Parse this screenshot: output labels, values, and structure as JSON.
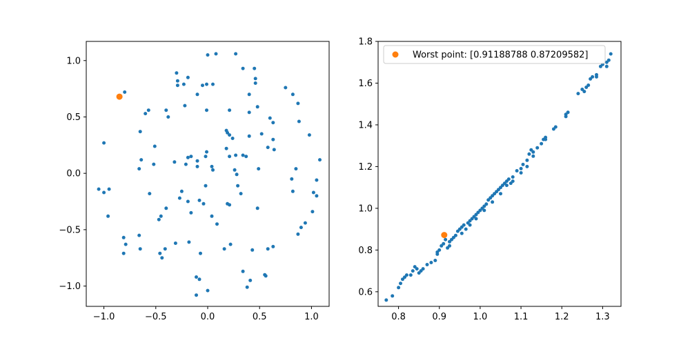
{
  "chart_data": [
    {
      "type": "scatter",
      "title": "",
      "xlabel": "",
      "ylabel": "",
      "xlim": [
        -1.17,
        1.17
      ],
      "ylim": [
        -1.18,
        1.17
      ],
      "xticks": [
        -1.0,
        -0.5,
        0.0,
        0.5,
        1.0
      ],
      "xtick_labels": [
        "−1.0",
        "−0.5",
        "0.0",
        "0.5",
        "1.0"
      ],
      "yticks": [
        -1.0,
        -0.5,
        0.0,
        0.5,
        1.0
      ],
      "ytick_labels": [
        "−1.0",
        "−0.5",
        "0.0",
        "0.5",
        "1.0"
      ],
      "grid": false,
      "series": [
        {
          "color": "#1f77b4",
          "marker_size": "small",
          "points": [
            [
              -0.3,
              0.89
            ],
            [
              -0.29,
              0.82
            ],
            [
              -0.29,
              0.78
            ],
            [
              -0.23,
              0.79
            ],
            [
              -0.19,
              0.85
            ],
            [
              -0.1,
              0.7
            ],
            [
              -0.05,
              0.78
            ],
            [
              -0.01,
              0.79
            ],
            [
              0.05,
              0.79
            ],
            [
              0.0,
              1.05
            ],
            [
              0.08,
              1.06
            ],
            [
              0.27,
              1.06
            ],
            [
              0.34,
              0.93
            ],
            [
              0.45,
              0.93
            ],
            [
              0.46,
              0.84
            ],
            [
              0.46,
              0.8
            ],
            [
              0.4,
              0.7
            ],
            [
              0.75,
              0.76
            ],
            [
              0.82,
              0.7
            ],
            [
              0.87,
              0.62
            ],
            [
              -0.8,
              0.72
            ],
            [
              -0.6,
              0.53
            ],
            [
              -0.57,
              0.56
            ],
            [
              -0.4,
              0.56
            ],
            [
              -0.38,
              0.5
            ],
            [
              -0.22,
              0.6
            ],
            [
              -0.01,
              0.56
            ],
            [
              0.21,
              0.56
            ],
            [
              0.4,
              0.54
            ],
            [
              0.48,
              0.59
            ],
            [
              0.6,
              0.49
            ],
            [
              0.63,
              0.45
            ],
            [
              0.88,
              0.46
            ],
            [
              -1.0,
              0.27
            ],
            [
              -0.65,
              0.37
            ],
            [
              -0.51,
              0.24
            ],
            [
              -0.19,
              0.14
            ],
            [
              -0.16,
              0.15
            ],
            [
              -0.1,
              0.11
            ],
            [
              -0.02,
              0.15
            ],
            [
              -0.01,
              0.19
            ],
            [
              0.18,
              0.38
            ],
            [
              0.19,
              0.36
            ],
            [
              0.21,
              0.34
            ],
            [
              0.24,
              0.31
            ],
            [
              0.27,
              0.16
            ],
            [
              0.34,
              0.16
            ],
            [
              0.4,
              0.33
            ],
            [
              0.52,
              0.35
            ],
            [
              0.58,
              0.23
            ],
            [
              0.63,
              0.3
            ],
            [
              0.64,
              0.21
            ],
            [
              0.98,
              0.34
            ],
            [
              -0.66,
              0.04
            ],
            [
              -0.64,
              0.12
            ],
            [
              -0.52,
              0.08
            ],
            [
              -0.32,
              0.1
            ],
            [
              -0.21,
              0.08
            ],
            [
              -0.1,
              0.06
            ],
            [
              0.04,
              0.06
            ],
            [
              0.05,
              0.03
            ],
            [
              0.18,
              0.22
            ],
            [
              0.21,
              0.15
            ],
            [
              0.26,
              0.03
            ],
            [
              0.28,
              -0.01
            ],
            [
              0.37,
              0.15
            ],
            [
              0.49,
              0.04
            ],
            [
              0.81,
              -0.05
            ],
            [
              0.85,
              0.04
            ],
            [
              1.05,
              -0.06
            ],
            [
              1.08,
              0.12
            ],
            [
              -1.05,
              -0.14
            ],
            [
              -1.0,
              -0.17
            ],
            [
              -0.95,
              -0.14
            ],
            [
              -0.56,
              -0.18
            ],
            [
              -0.27,
              -0.22
            ],
            [
              -0.25,
              -0.16
            ],
            [
              -0.19,
              -0.25
            ],
            [
              -0.16,
              -0.35
            ],
            [
              -0.08,
              -0.24
            ],
            [
              -0.02,
              -0.11
            ],
            [
              -0.04,
              -0.27
            ],
            [
              0.19,
              -0.27
            ],
            [
              0.21,
              -0.28
            ],
            [
              0.29,
              -0.11
            ],
            [
              0.32,
              -0.18
            ],
            [
              0.48,
              -0.31
            ],
            [
              0.82,
              -0.16
            ],
            [
              1.02,
              -0.17
            ],
            [
              1.05,
              -0.2
            ],
            [
              -0.96,
              -0.38
            ],
            [
              -0.45,
              -0.38
            ],
            [
              -0.4,
              -0.31
            ],
            [
              -0.47,
              -0.41
            ],
            [
              0.04,
              -0.38
            ],
            [
              0.09,
              -0.45
            ],
            [
              1.01,
              -0.34
            ],
            [
              0.94,
              -0.44
            ],
            [
              0.9,
              -0.48
            ],
            [
              0.87,
              -0.54
            ],
            [
              -0.81,
              -0.57
            ],
            [
              -0.79,
              -0.63
            ],
            [
              -0.81,
              -0.71
            ],
            [
              -0.66,
              -0.55
            ],
            [
              -0.65,
              -0.67
            ],
            [
              -0.41,
              -0.67
            ],
            [
              -0.46,
              -0.71
            ],
            [
              -0.44,
              -0.75
            ],
            [
              -0.31,
              -0.62
            ],
            [
              -0.18,
              -0.61
            ],
            [
              -0.07,
              -0.71
            ],
            [
              0.16,
              -0.67
            ],
            [
              0.22,
              -0.63
            ],
            [
              0.43,
              -0.68
            ],
            [
              0.58,
              -0.67
            ],
            [
              0.63,
              -0.65
            ],
            [
              0.34,
              -0.87
            ],
            [
              0.41,
              -0.95
            ],
            [
              0.38,
              -1.01
            ],
            [
              0.55,
              -0.9
            ],
            [
              0.56,
              -0.91
            ],
            [
              -0.11,
              -0.92
            ],
            [
              -0.08,
              -0.94
            ],
            [
              0.0,
              -1.04
            ],
            [
              -0.11,
              -1.08
            ]
          ]
        },
        {
          "color": "#ff7f0e",
          "marker_size": "large",
          "points": [
            [
              -0.85,
              0.68
            ]
          ]
        }
      ]
    },
    {
      "type": "scatter",
      "title": "",
      "xlabel": "",
      "ylabel": "",
      "xlim": [
        0.75,
        1.345
      ],
      "ylim": [
        0.53,
        1.8
      ],
      "xticks": [
        0.8,
        0.9,
        1.0,
        1.1,
        1.2,
        1.3
      ],
      "xtick_labels": [
        "0.8",
        "0.9",
        "1.0",
        "1.1",
        "1.2",
        "1.3"
      ],
      "yticks": [
        0.6,
        0.8,
        1.0,
        1.2,
        1.4,
        1.6,
        1.8
      ],
      "ytick_labels": [
        "0.6",
        "0.8",
        "1.0",
        "1.2",
        "1.4",
        "1.6",
        "1.8"
      ],
      "grid": false,
      "legend": {
        "placement": "upper-left",
        "entries": [
          {
            "label": "Worst point: [0.91188788 0.87209582]",
            "color": "#ff7f0e"
          }
        ]
      },
      "series": [
        {
          "color": "#1f77b4",
          "marker_size": "small",
          "points": [
            [
              0.77,
              0.56
            ],
            [
              0.785,
              0.58
            ],
            [
              0.8,
              0.62
            ],
            [
              0.805,
              0.64
            ],
            [
              0.81,
              0.66
            ],
            [
              0.815,
              0.67
            ],
            [
              0.82,
              0.68
            ],
            [
              0.83,
              0.68
            ],
            [
              0.835,
              0.7
            ],
            [
              0.84,
              0.72
            ],
            [
              0.845,
              0.71
            ],
            [
              0.85,
              0.69
            ],
            [
              0.855,
              0.7
            ],
            [
              0.86,
              0.71
            ],
            [
              0.87,
              0.73
            ],
            [
              0.88,
              0.74
            ],
            [
              0.89,
              0.75
            ],
            [
              0.895,
              0.78
            ],
            [
              0.9,
              0.8
            ],
            [
              0.905,
              0.82
            ],
            [
              0.91,
              0.83
            ],
            [
              0.915,
              0.85
            ],
            [
              0.92,
              0.81
            ],
            [
              0.925,
              0.82
            ],
            [
              0.93,
              0.85
            ],
            [
              0.935,
              0.86
            ],
            [
              0.94,
              0.87
            ],
            [
              0.945,
              0.89
            ],
            [
              0.95,
              0.9
            ],
            [
              0.955,
              0.91
            ],
            [
              0.96,
              0.92
            ],
            [
              0.965,
              0.9
            ],
            [
              0.97,
              0.93
            ],
            [
              0.975,
              0.94
            ],
            [
              0.98,
              0.95
            ],
            [
              0.985,
              0.96
            ],
            [
              0.99,
              0.97
            ],
            [
              0.995,
              0.98
            ],
            [
              1.0,
              0.99
            ],
            [
              1.005,
              1.0
            ],
            [
              1.01,
              1.01
            ],
            [
              1.015,
              1.02
            ],
            [
              1.02,
              1.04
            ],
            [
              1.025,
              1.05
            ],
            [
              1.03,
              1.06
            ],
            [
              1.035,
              1.07
            ],
            [
              1.04,
              1.08
            ],
            [
              1.045,
              1.09
            ],
            [
              1.05,
              1.1
            ],
            [
              1.055,
              1.11
            ],
            [
              1.06,
              1.12
            ],
            [
              1.065,
              1.13
            ],
            [
              1.07,
              1.14
            ],
            [
              1.075,
              1.12
            ],
            [
              1.08,
              1.15
            ],
            [
              1.09,
              1.18
            ],
            [
              1.1,
              1.19
            ],
            [
              1.105,
              1.21
            ],
            [
              1.115,
              1.23
            ],
            [
              1.12,
              1.26
            ],
            [
              1.125,
              1.28
            ],
            [
              1.13,
              1.27
            ],
            [
              1.14,
              1.29
            ],
            [
              1.15,
              1.31
            ],
            [
              1.155,
              1.33
            ],
            [
              1.16,
              1.34
            ],
            [
              1.18,
              1.38
            ],
            [
              1.185,
              1.39
            ],
            [
              1.21,
              1.44
            ],
            [
              1.215,
              1.46
            ],
            [
              1.24,
              1.55
            ],
            [
              1.255,
              1.56
            ],
            [
              1.26,
              1.58
            ],
            [
              1.265,
              1.59
            ],
            [
              1.27,
              1.62
            ],
            [
              1.275,
              1.63
            ],
            [
              1.285,
              1.64
            ],
            [
              1.295,
              1.68
            ],
            [
              1.3,
              1.69
            ],
            [
              1.31,
              1.7
            ],
            [
              1.315,
              1.71
            ],
            [
              1.32,
              1.74
            ],
            [
              0.895,
              0.79
            ],
            [
              0.925,
              0.84
            ],
            [
              0.955,
              0.88
            ],
            [
              0.975,
              0.92
            ],
            [
              0.99,
              0.95
            ],
            [
              1.01,
              0.99
            ],
            [
              1.03,
              1.03
            ],
            [
              1.05,
              1.07
            ],
            [
              1.065,
              1.11
            ],
            [
              1.08,
              1.13
            ],
            [
              1.1,
              1.17
            ],
            [
              1.115,
              1.2
            ],
            [
              1.13,
              1.25
            ],
            [
              1.16,
              1.33
            ],
            [
              1.21,
              1.45
            ],
            [
              1.25,
              1.57
            ],
            [
              1.285,
              1.63
            ],
            [
              1.31,
              1.68
            ]
          ]
        },
        {
          "color": "#ff7f0e",
          "marker_size": "large",
          "points": [
            [
              0.91188788,
              0.87209582
            ]
          ]
        }
      ]
    }
  ]
}
